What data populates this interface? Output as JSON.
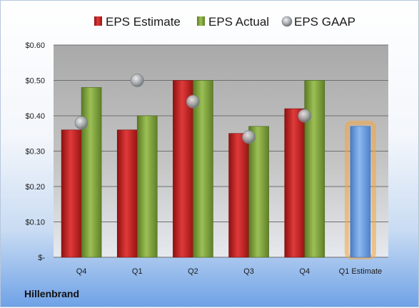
{
  "company": "Hillenbrand",
  "chart_data": {
    "type": "bar",
    "categories": [
      "Q4",
      "Q1",
      "Q2",
      "Q3",
      "Q4",
      "Q1 Estimate"
    ],
    "series": [
      {
        "name": "EPS Estimate",
        "color": "#cc2020",
        "values": [
          0.36,
          0.36,
          0.5,
          0.35,
          0.42,
          null
        ]
      },
      {
        "name": "EPS Actual",
        "color": "#7da13c",
        "values": [
          0.48,
          0.4,
          0.5,
          0.37,
          0.5,
          null
        ]
      },
      {
        "name": "EPS GAAP",
        "color": "#9aa0a6",
        "type": "scatter",
        "values": [
          0.38,
          0.5,
          0.44,
          0.34,
          0.4,
          null
        ]
      }
    ],
    "forecast": {
      "category": "Q1 Estimate",
      "value": 0.37,
      "color": "#6a9ee0",
      "glow": "#f4a640"
    },
    "ylim": [
      0,
      0.6
    ],
    "yticks": [
      0,
      0.1,
      0.2,
      0.3,
      0.4,
      0.5,
      0.6
    ],
    "ytick_labels": [
      "$-",
      "$0.10",
      "$0.20",
      "$0.30",
      "$0.40",
      "$0.50",
      "$0.60"
    ],
    "grid": true,
    "legend_position": "top"
  }
}
